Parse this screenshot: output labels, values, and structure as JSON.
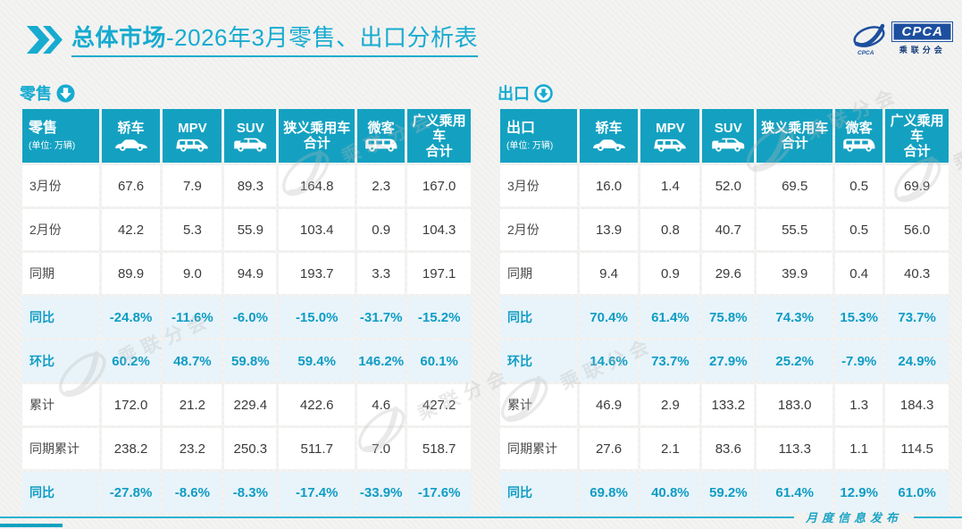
{
  "title": {
    "prefix": "总体市场",
    "rest": "-2026年3月零售、出口分析表"
  },
  "logo": {
    "acronym": "CPCA",
    "acronym_small": "CPCA",
    "org_cn": "乘联分会"
  },
  "watermark": {
    "text": "乘联分会"
  },
  "footer": {
    "text": "月度信息发布"
  },
  "colors": {
    "accent": "#14a1c1",
    "accent_bright": "#17abd0",
    "highlight_bg": "#e8f4fa",
    "percent_text": "#0f9cc4",
    "logo_navy": "#1d4f9e",
    "footer_line": "#2db2d2",
    "watermark_gray": "#b9b9b9",
    "page_bg": "#f3f3f2",
    "cell_bg": "#ffffff",
    "text_dark": "#3b3b3b"
  },
  "columns": [
    {
      "lines": [
        "轿车"
      ],
      "icon": "sedan-icon"
    },
    {
      "lines": [
        "MPV"
      ],
      "icon": "mpv-icon"
    },
    {
      "lines": [
        "SUV"
      ],
      "icon": "suv-icon"
    },
    {
      "lines": [
        "狭义乘用车",
        "合计"
      ],
      "icon": null
    },
    {
      "lines": [
        "微客"
      ],
      "icon": "minibus-icon"
    },
    {
      "lines": [
        "广义乘用车",
        "合计"
      ],
      "icon": null
    }
  ],
  "tables": {
    "retail": {
      "section_label": "零售",
      "section_icon": "down-arrow-filled-icon",
      "corner_label": "零售",
      "unit": "(单位: 万辆)",
      "rows": [
        {
          "label": "3月份",
          "style": "normal",
          "values": [
            "67.6",
            "7.9",
            "89.3",
            "164.8",
            "2.3",
            "167.0"
          ]
        },
        {
          "label": "2月份",
          "style": "normal",
          "values": [
            "42.2",
            "5.3",
            "55.9",
            "103.4",
            "0.9",
            "104.3"
          ]
        },
        {
          "label": "同期",
          "style": "normal",
          "values": [
            "89.9",
            "9.0",
            "94.9",
            "193.7",
            "3.3",
            "197.1"
          ]
        },
        {
          "label": "同比",
          "style": "highlight",
          "values": [
            "-24.8%",
            "-11.6%",
            "-6.0%",
            "-15.0%",
            "-31.7%",
            "-15.2%"
          ]
        },
        {
          "label": "环比",
          "style": "highlight",
          "values": [
            "60.2%",
            "48.7%",
            "59.8%",
            "59.4%",
            "146.2%",
            "60.1%"
          ]
        },
        {
          "label": "累计",
          "style": "normal",
          "values": [
            "172.0",
            "21.2",
            "229.4",
            "422.6",
            "4.6",
            "427.2"
          ]
        },
        {
          "label": "同期累计",
          "style": "normal",
          "values": [
            "238.2",
            "23.2",
            "250.3",
            "511.7",
            "7.0",
            "518.7"
          ]
        },
        {
          "label": "同比",
          "style": "highlight",
          "values": [
            "-27.8%",
            "-8.6%",
            "-8.3%",
            "-17.4%",
            "-33.9%",
            "-17.6%"
          ]
        }
      ]
    },
    "export": {
      "section_label": "出口",
      "section_icon": "down-arrow-outline-icon",
      "corner_label": "出口",
      "unit": "(单位: 万辆)",
      "rows": [
        {
          "label": "3月份",
          "style": "normal",
          "values": [
            "16.0",
            "1.4",
            "52.0",
            "69.5",
            "0.5",
            "69.9"
          ]
        },
        {
          "label": "2月份",
          "style": "normal",
          "values": [
            "13.9",
            "0.8",
            "40.7",
            "55.5",
            "0.5",
            "56.0"
          ]
        },
        {
          "label": "同期",
          "style": "normal",
          "values": [
            "9.4",
            "0.9",
            "29.6",
            "39.9",
            "0.4",
            "40.3"
          ]
        },
        {
          "label": "同比",
          "style": "highlight",
          "values": [
            "70.4%",
            "61.4%",
            "75.8%",
            "74.3%",
            "15.3%",
            "73.7%"
          ]
        },
        {
          "label": "环比",
          "style": "highlight",
          "values": [
            "14.6%",
            "73.7%",
            "27.9%",
            "25.2%",
            "-7.9%",
            "24.9%"
          ]
        },
        {
          "label": "累计",
          "style": "normal",
          "values": [
            "46.9",
            "2.9",
            "133.2",
            "183.0",
            "1.3",
            "184.3"
          ]
        },
        {
          "label": "同期累计",
          "style": "normal",
          "values": [
            "27.6",
            "2.1",
            "83.6",
            "113.3",
            "1.1",
            "114.5"
          ]
        },
        {
          "label": "同比",
          "style": "highlight",
          "values": [
            "69.8%",
            "40.8%",
            "59.2%",
            "61.4%",
            "12.9%",
            "61.0%"
          ]
        }
      ]
    }
  }
}
